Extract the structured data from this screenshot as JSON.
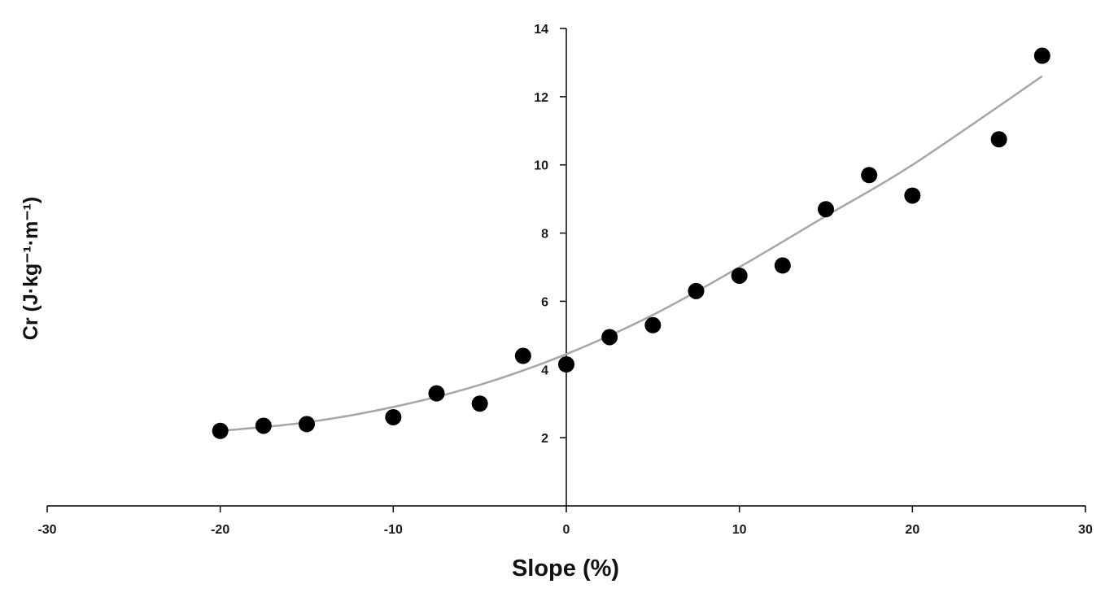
{
  "chart_data": {
    "type": "scatter",
    "title": "",
    "xlabel": "Slope (%)",
    "ylabel": "Cr (J·kg⁻¹·m⁻¹)",
    "xlim": [
      -30,
      30
    ],
    "ylim": [
      0,
      14
    ],
    "x_ticks": [
      -30,
      -20,
      -10,
      0,
      10,
      20,
      30
    ],
    "y_ticks": [
      2,
      4,
      6,
      8,
      10,
      12,
      14
    ],
    "x_tick_labels": [
      "-30",
      "-20",
      "-10",
      "0",
      "10",
      "20",
      "30"
    ],
    "y_tick_labels": [
      "2",
      "4",
      "6",
      "8",
      "10",
      "12",
      "14"
    ],
    "grid": false,
    "legend": "none",
    "series": [
      {
        "points": [
          {
            "x": -20,
            "y": 2.2
          },
          {
            "x": -17.5,
            "y": 2.35
          },
          {
            "x": -15,
            "y": 2.4
          },
          {
            "x": -10,
            "y": 2.6
          },
          {
            "x": -7.5,
            "y": 3.3
          },
          {
            "x": -5,
            "y": 3.0
          },
          {
            "x": -2.5,
            "y": 4.4
          },
          {
            "x": 0,
            "y": 4.15
          },
          {
            "x": 2.5,
            "y": 4.95
          },
          {
            "x": 5,
            "y": 5.3
          },
          {
            "x": 7.5,
            "y": 6.3
          },
          {
            "x": 10,
            "y": 6.75
          },
          {
            "x": 12.5,
            "y": 7.05
          },
          {
            "x": 15,
            "y": 8.7
          },
          {
            "x": 17.5,
            "y": 9.7
          },
          {
            "x": 20,
            "y": 9.1
          },
          {
            "x": 25,
            "y": 10.75
          },
          {
            "x": 27.5,
            "y": 13.2
          }
        ],
        "color": "#000000"
      }
    ],
    "trendline": {
      "type": "polynomial",
      "x_range": [
        -20,
        27.5
      ],
      "points": [
        {
          "x": -20,
          "y": 2.2
        },
        {
          "x": -15,
          "y": 2.45
        },
        {
          "x": -10,
          "y": 2.9
        },
        {
          "x": -5,
          "y": 3.55
        },
        {
          "x": 0,
          "y": 4.45
        },
        {
          "x": 5,
          "y": 5.6
        },
        {
          "x": 10,
          "y": 7.0
        },
        {
          "x": 15,
          "y": 8.5
        },
        {
          "x": 20,
          "y": 10.0
        },
        {
          "x": 27.5,
          "y": 12.6
        }
      ],
      "color": "#a6a6a6"
    },
    "axis_color": "#000000"
  }
}
